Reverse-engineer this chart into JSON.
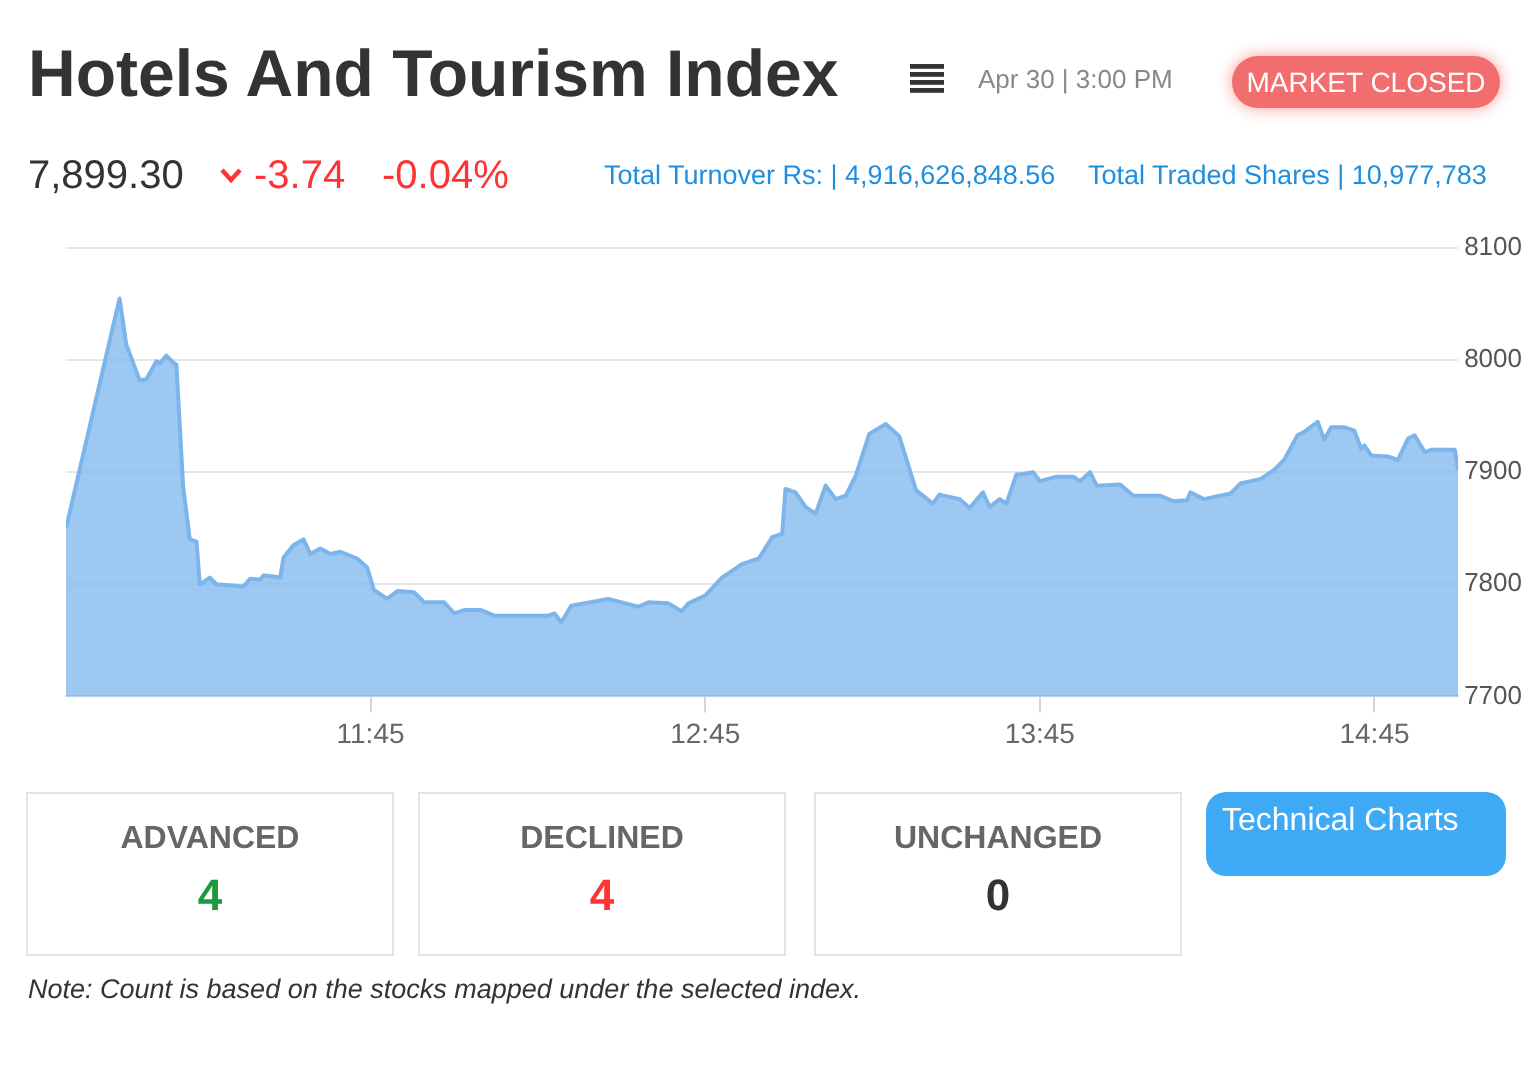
{
  "chart_data": {
    "type": "area",
    "title": "Hotels And Tourism Index",
    "subtitle": "Apr 30 | 3:00 PM",
    "annotations": [
      "MARKET CLOSED",
      "7,899.30",
      "-3.74",
      "-0.04%",
      "Total Turnover Rs: | 4,916,626,848.56",
      "Total Traded Shares | 10,977,783",
      "ADVANCED",
      "4",
      "DECLINED",
      "4",
      "UNCHANGED",
      "0",
      "Technical Charts",
      "Note: Count is based on the stocks mapped under the selected index."
    ],
    "xlim": [
      10.84,
      15.0
    ],
    "xticks": [
      {
        "value": 11.75,
        "label": "11:45"
      },
      {
        "value": 12.75,
        "label": "12:45"
      },
      {
        "value": 13.75,
        "label": "13:45"
      },
      {
        "value": 14.75,
        "label": "14:45"
      }
    ],
    "ylim": [
      7700,
      8100
    ],
    "yticks": [
      7700,
      7800,
      7900,
      8000,
      8100
    ],
    "grid": "y",
    "legend": false,
    "series": [
      {
        "color": "#7cb5ec",
        "x": [
          10.84,
          11.0,
          11.02,
          11.06,
          11.08,
          11.11,
          11.12,
          11.14,
          11.16,
          11.17,
          11.19,
          11.21,
          11.23,
          11.24,
          11.27,
          11.29,
          11.37,
          11.39,
          11.42,
          11.43,
          11.48,
          11.49,
          11.52,
          11.55,
          11.57,
          11.6,
          11.63,
          11.66,
          11.71,
          11.74,
          11.76,
          11.8,
          11.83,
          11.88,
          11.91,
          11.97,
          12.0,
          12.03,
          12.08,
          12.12,
          12.28,
          12.3,
          12.32,
          12.35,
          12.46,
          12.55,
          12.58,
          12.64,
          12.68,
          12.7,
          12.75,
          12.8,
          12.86,
          12.91,
          12.95,
          12.98,
          12.99,
          13.02,
          13.05,
          13.08,
          13.11,
          13.14,
          13.17,
          13.2,
          13.24,
          13.29,
          13.33,
          13.38,
          13.43,
          13.45,
          13.51,
          13.54,
          13.58,
          13.6,
          13.63,
          13.65,
          13.68,
          13.69,
          13.73,
          13.75,
          13.8,
          13.85,
          13.87,
          13.9,
          13.92,
          13.99,
          14.03,
          14.11,
          14.15,
          14.19,
          14.2,
          14.24,
          14.32,
          14.35,
          14.41,
          14.45,
          14.48,
          14.52,
          14.54,
          14.58,
          14.6,
          14.62,
          14.66,
          14.69,
          14.71,
          14.72,
          14.74,
          14.79,
          14.82,
          14.85,
          14.87,
          14.9,
          14.92,
          14.99,
          15.0
        ],
        "values": [
          7850,
          8055,
          8014,
          7982,
          7983,
          7999,
          7997,
          8004,
          7998,
          7996,
          7887,
          7840,
          7838,
          7800,
          7806,
          7800,
          7798,
          7805,
          7804,
          7808,
          7806,
          7824,
          7835,
          7840,
          7827,
          7832,
          7827,
          7829,
          7823,
          7815,
          7795,
          7787,
          7794,
          7793,
          7784,
          7784,
          7774,
          7777,
          7777,
          7772,
          7772,
          7774,
          7766,
          7781,
          7787,
          7780,
          7784,
          7783,
          7776,
          7783,
          7790,
          7806,
          7818,
          7823,
          7842,
          7845,
          7885,
          7882,
          7869,
          7863,
          7888,
          7876,
          7879,
          7897,
          7934,
          7943,
          7932,
          7884,
          7872,
          7880,
          7876,
          7868,
          7882,
          7869,
          7876,
          7872,
          7898,
          7898,
          7900,
          7892,
          7896,
          7896,
          7892,
          7900,
          7888,
          7889,
          7879,
          7879,
          7874,
          7875,
          7882,
          7876,
          7881,
          7890,
          7894,
          7902,
          7911,
          7933,
          7936,
          7945,
          7929,
          7940,
          7940,
          7937,
          7921,
          7924,
          7915,
          7914,
          7911,
          7930,
          7933,
          7918,
          7920,
          7920,
          7902
        ]
      }
    ]
  }
}
